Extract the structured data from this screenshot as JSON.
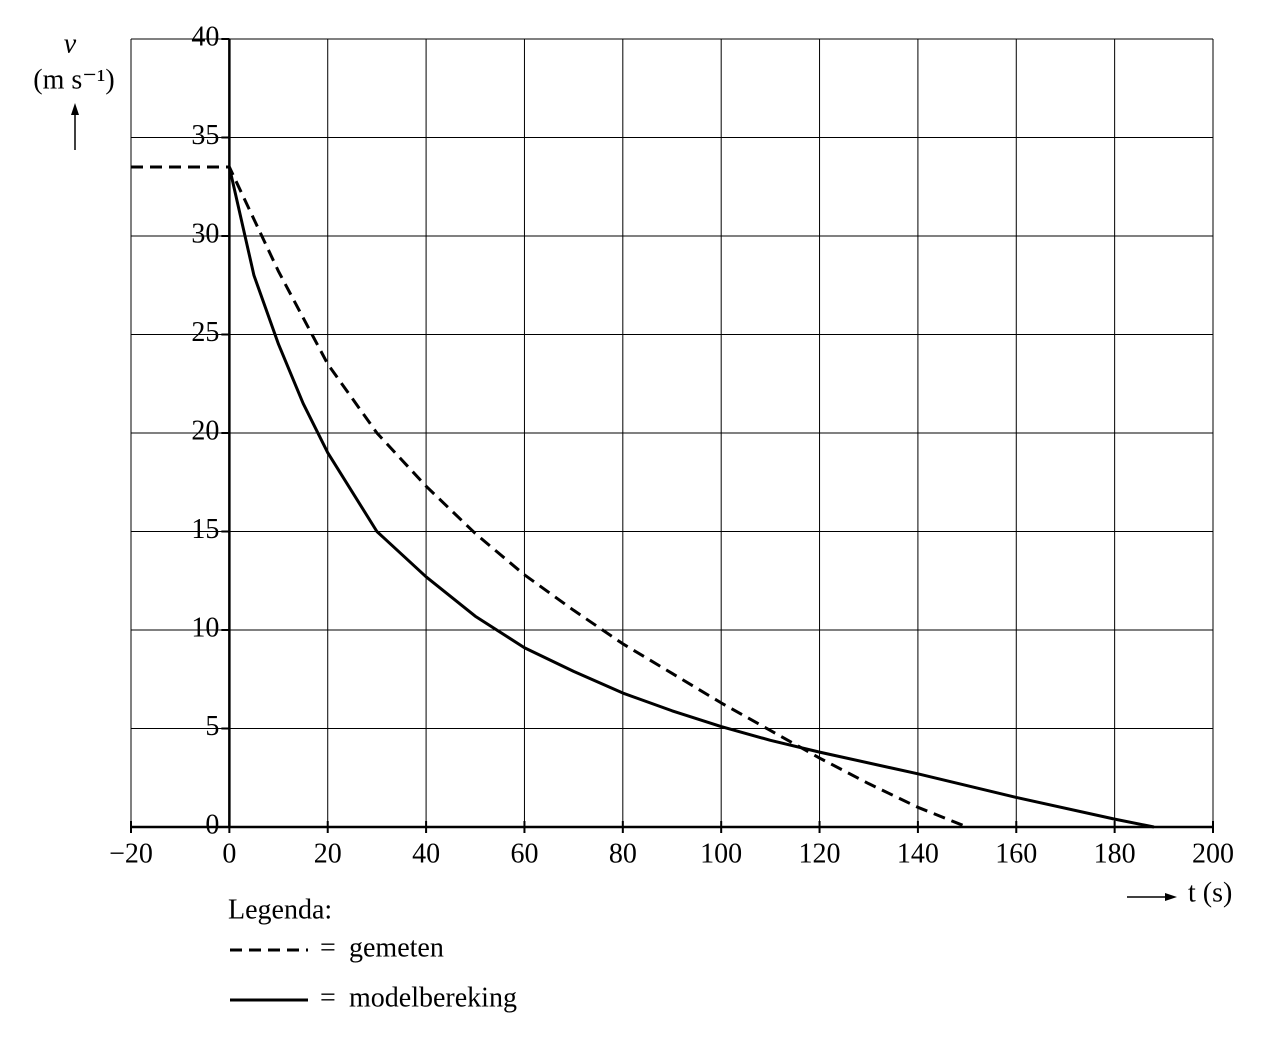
{
  "chart_data": {
    "type": "line",
    "y_label": "v",
    "y_unit": "(m s⁻¹)",
    "x_label": "t (s)",
    "legend_title": "Legenda:",
    "legend_separator": "=",
    "xlim": [
      -20,
      200
    ],
    "ylim": [
      0,
      40
    ],
    "xticks": [
      {
        "value": -20,
        "label": "−20"
      },
      0,
      20,
      40,
      60,
      80,
      100,
      120,
      140,
      160,
      180,
      200
    ],
    "yticks": [
      0,
      5,
      10,
      15,
      20,
      25,
      30,
      35,
      40
    ],
    "grid": true,
    "series": [
      {
        "name": "gemeten",
        "color": "#000000",
        "dashed": true,
        "x": [
          -20,
          0,
          10,
          20,
          30,
          40,
          50,
          60,
          70,
          80,
          90,
          100,
          110,
          120,
          130,
          140,
          150
        ],
        "values": [
          33.5,
          33.5,
          28.2,
          23.5,
          20,
          17.3,
          14.9,
          12.8,
          11,
          9.3,
          7.8,
          6.3,
          4.9,
          3.5,
          2.2,
          1.0,
          0
        ]
      },
      {
        "name": "modelbereking",
        "color": "#000000",
        "dashed": false,
        "x": [
          0,
          5,
          10,
          15,
          20,
          30,
          40,
          50,
          60,
          70,
          80,
          90,
          100,
          110,
          120,
          140,
          160,
          180,
          188
        ],
        "values": [
          33.5,
          28,
          24.5,
          21.5,
          19,
          15,
          12.7,
          10.7,
          9.1,
          7.9,
          6.8,
          5.9,
          5.1,
          4.4,
          3.8,
          2.7,
          1.5,
          0.4,
          0
        ]
      }
    ]
  }
}
